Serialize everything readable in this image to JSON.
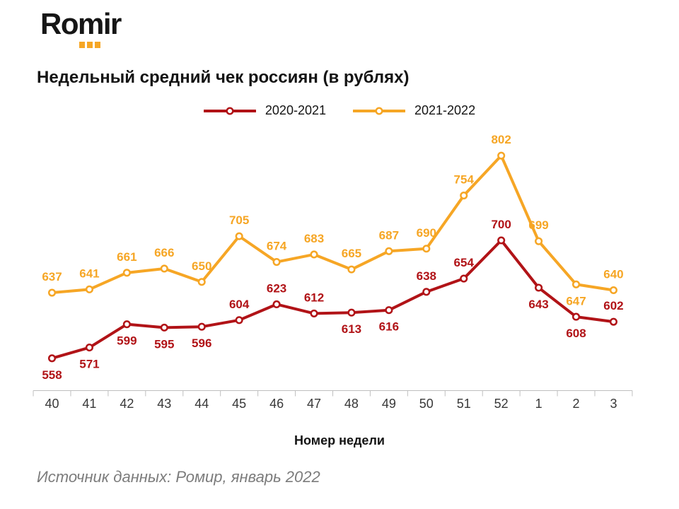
{
  "logo": {
    "text": "Romir",
    "accent_color": "#F6A625"
  },
  "title": "Недельный средний чек россиян (в рублях)",
  "source": "Источник данных: Ромир, январь 2022",
  "chart_data": {
    "type": "line",
    "title": "Недельный средний чек россиян (в рублях)",
    "xlabel": "Номер недели",
    "categories": [
      "40",
      "41",
      "42",
      "43",
      "44",
      "45",
      "46",
      "47",
      "48",
      "49",
      "50",
      "51",
      "52",
      "1",
      "2",
      "3"
    ],
    "ylim": [
      540,
      820
    ],
    "grid": false,
    "legend_position": "top",
    "axis_color": "#BFBFBF",
    "marker_style": "open-circle",
    "series": [
      {
        "name": "2020-2021",
        "color": "#B11317",
        "values": [
          558,
          571,
          599,
          595,
          596,
          604,
          623,
          612,
          613,
          616,
          638,
          654,
          700,
          643,
          608,
          602
        ],
        "label_positions": [
          "below",
          "below",
          "below",
          "below",
          "below",
          "above",
          "above",
          "above",
          "below",
          "below",
          "above",
          "above",
          "above",
          "below",
          "below",
          "above"
        ]
      },
      {
        "name": "2021-2022",
        "color": "#F6A625",
        "values": [
          637,
          641,
          661,
          666,
          650,
          705,
          674,
          683,
          665,
          687,
          690,
          754,
          802,
          699,
          647,
          640
        ],
        "label_positions": [
          "above",
          "above",
          "above",
          "above",
          "above",
          "above",
          "above",
          "above",
          "above",
          "above",
          "above",
          "above",
          "above",
          "above",
          "below",
          "above"
        ]
      }
    ]
  }
}
